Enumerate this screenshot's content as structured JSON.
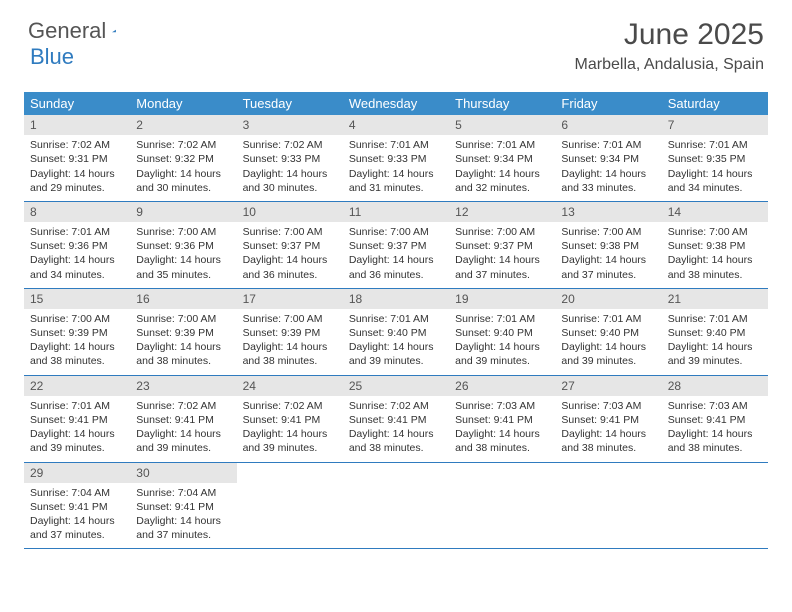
{
  "logo": {
    "word1": "General",
    "word2": "Blue"
  },
  "title": "June 2025",
  "location": "Marbella, Andalusia, Spain",
  "colors": {
    "header_bar": "#3a8cc9",
    "week_divider": "#2f7bbf",
    "daynum_bg": "#e6e6e6",
    "text": "#333333",
    "logo_blue": "#2f7bbf"
  },
  "weekdays": [
    "Sunday",
    "Monday",
    "Tuesday",
    "Wednesday",
    "Thursday",
    "Friday",
    "Saturday"
  ],
  "weeks": [
    [
      {
        "n": "1",
        "sr": "7:02 AM",
        "ss": "9:31 PM",
        "dl": "14 hours and 29 minutes."
      },
      {
        "n": "2",
        "sr": "7:02 AM",
        "ss": "9:32 PM",
        "dl": "14 hours and 30 minutes."
      },
      {
        "n": "3",
        "sr": "7:02 AM",
        "ss": "9:33 PM",
        "dl": "14 hours and 30 minutes."
      },
      {
        "n": "4",
        "sr": "7:01 AM",
        "ss": "9:33 PM",
        "dl": "14 hours and 31 minutes."
      },
      {
        "n": "5",
        "sr": "7:01 AM",
        "ss": "9:34 PM",
        "dl": "14 hours and 32 minutes."
      },
      {
        "n": "6",
        "sr": "7:01 AM",
        "ss": "9:34 PM",
        "dl": "14 hours and 33 minutes."
      },
      {
        "n": "7",
        "sr": "7:01 AM",
        "ss": "9:35 PM",
        "dl": "14 hours and 34 minutes."
      }
    ],
    [
      {
        "n": "8",
        "sr": "7:01 AM",
        "ss": "9:36 PM",
        "dl": "14 hours and 34 minutes."
      },
      {
        "n": "9",
        "sr": "7:00 AM",
        "ss": "9:36 PM",
        "dl": "14 hours and 35 minutes."
      },
      {
        "n": "10",
        "sr": "7:00 AM",
        "ss": "9:37 PM",
        "dl": "14 hours and 36 minutes."
      },
      {
        "n": "11",
        "sr": "7:00 AM",
        "ss": "9:37 PM",
        "dl": "14 hours and 36 minutes."
      },
      {
        "n": "12",
        "sr": "7:00 AM",
        "ss": "9:37 PM",
        "dl": "14 hours and 37 minutes."
      },
      {
        "n": "13",
        "sr": "7:00 AM",
        "ss": "9:38 PM",
        "dl": "14 hours and 37 minutes."
      },
      {
        "n": "14",
        "sr": "7:00 AM",
        "ss": "9:38 PM",
        "dl": "14 hours and 38 minutes."
      }
    ],
    [
      {
        "n": "15",
        "sr": "7:00 AM",
        "ss": "9:39 PM",
        "dl": "14 hours and 38 minutes."
      },
      {
        "n": "16",
        "sr": "7:00 AM",
        "ss": "9:39 PM",
        "dl": "14 hours and 38 minutes."
      },
      {
        "n": "17",
        "sr": "7:00 AM",
        "ss": "9:39 PM",
        "dl": "14 hours and 38 minutes."
      },
      {
        "n": "18",
        "sr": "7:01 AM",
        "ss": "9:40 PM",
        "dl": "14 hours and 39 minutes."
      },
      {
        "n": "19",
        "sr": "7:01 AM",
        "ss": "9:40 PM",
        "dl": "14 hours and 39 minutes."
      },
      {
        "n": "20",
        "sr": "7:01 AM",
        "ss": "9:40 PM",
        "dl": "14 hours and 39 minutes."
      },
      {
        "n": "21",
        "sr": "7:01 AM",
        "ss": "9:40 PM",
        "dl": "14 hours and 39 minutes."
      }
    ],
    [
      {
        "n": "22",
        "sr": "7:01 AM",
        "ss": "9:41 PM",
        "dl": "14 hours and 39 minutes."
      },
      {
        "n": "23",
        "sr": "7:02 AM",
        "ss": "9:41 PM",
        "dl": "14 hours and 39 minutes."
      },
      {
        "n": "24",
        "sr": "7:02 AM",
        "ss": "9:41 PM",
        "dl": "14 hours and 39 minutes."
      },
      {
        "n": "25",
        "sr": "7:02 AM",
        "ss": "9:41 PM",
        "dl": "14 hours and 38 minutes."
      },
      {
        "n": "26",
        "sr": "7:03 AM",
        "ss": "9:41 PM",
        "dl": "14 hours and 38 minutes."
      },
      {
        "n": "27",
        "sr": "7:03 AM",
        "ss": "9:41 PM",
        "dl": "14 hours and 38 minutes."
      },
      {
        "n": "28",
        "sr": "7:03 AM",
        "ss": "9:41 PM",
        "dl": "14 hours and 38 minutes."
      }
    ],
    [
      {
        "n": "29",
        "sr": "7:04 AM",
        "ss": "9:41 PM",
        "dl": "14 hours and 37 minutes."
      },
      {
        "n": "30",
        "sr": "7:04 AM",
        "ss": "9:41 PM",
        "dl": "14 hours and 37 minutes."
      },
      null,
      null,
      null,
      null,
      null
    ]
  ],
  "labels": {
    "sunrise": "Sunrise: ",
    "sunset": "Sunset: ",
    "daylight": "Daylight: "
  }
}
